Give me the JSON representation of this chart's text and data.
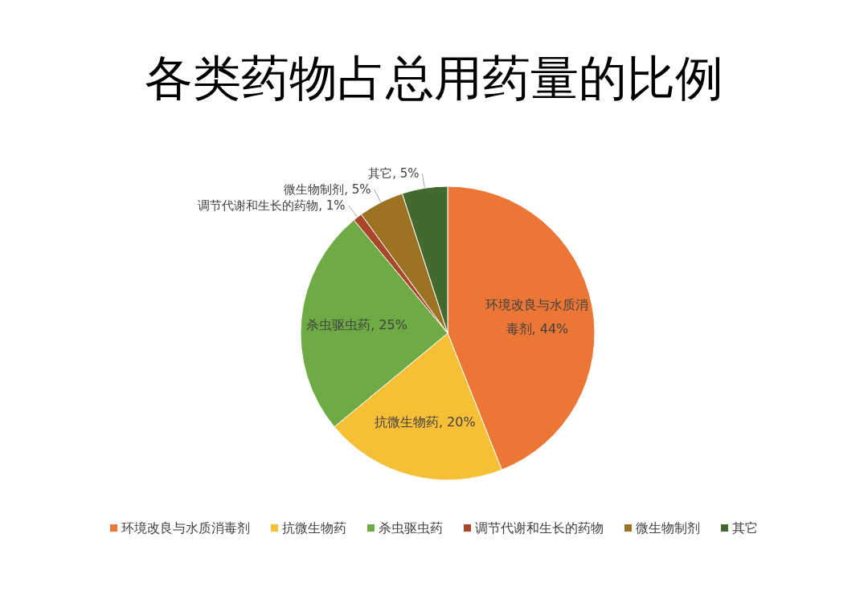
{
  "chart_data": {
    "type": "pie",
    "title": "各类药物占总用药量的比例",
    "categories": [
      "环境改良与水质消毒剂",
      "抗微生物药",
      "杀虫驱虫药",
      "调节代谢和生长的药物",
      "微生物制剂",
      "其它"
    ],
    "values": [
      44,
      20,
      25,
      1,
      5,
      5
    ],
    "colors": [
      "#ec7635",
      "#f7bf36",
      "#6eab45",
      "#a8472a",
      "#9c7324",
      "#44692c"
    ],
    "value_labels": [
      ", 44%",
      ", 20%",
      ", 25%",
      ", 1%",
      ", 5%",
      ", 5%"
    ],
    "legend": "bottom"
  }
}
